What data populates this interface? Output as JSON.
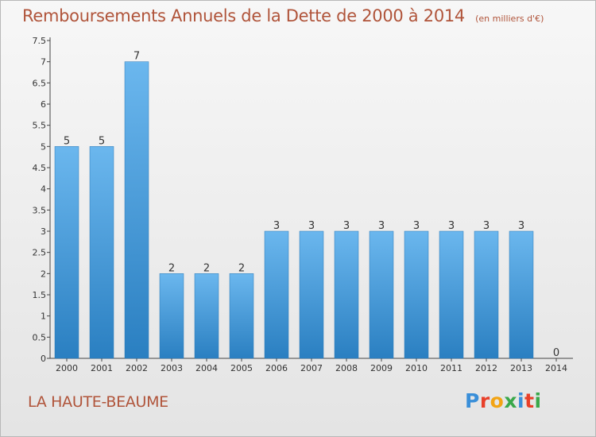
{
  "header": {
    "title": "Remboursements Annuels de la Dette de 2000 à 2014",
    "subtitle": "(en milliers d'€)"
  },
  "footer": {
    "commune": "LA HAUTE-BEAUME",
    "logo_letters": [
      "P",
      "r",
      "o",
      "x",
      "i",
      "t",
      "i"
    ],
    "logo_colors": [
      "#3a8fd9",
      "#e8402a",
      "#f2a414",
      "#3aa84a",
      "#3a8fd9",
      "#e8402a",
      "#3aa84a"
    ]
  },
  "chart_data": {
    "type": "bar",
    "categories": [
      "2000",
      "2001",
      "2002",
      "2003",
      "2004",
      "2005",
      "2006",
      "2007",
      "2008",
      "2009",
      "2010",
      "2011",
      "2012",
      "2013",
      "2014"
    ],
    "values": [
      5,
      5,
      7,
      2,
      2,
      2,
      3,
      3,
      3,
      3,
      3,
      3,
      3,
      3,
      0
    ],
    "data_labels": [
      "5",
      "5",
      "7",
      "2",
      "2",
      "2",
      "3",
      "3",
      "3",
      "3",
      "3",
      "3",
      "3",
      "3",
      "0"
    ],
    "y_ticks": [
      0,
      0.5,
      1,
      1.5,
      2,
      2.5,
      3,
      3.5,
      4,
      4.5,
      5,
      5.5,
      6,
      6.5,
      7,
      7.5
    ],
    "y_tick_labels": [
      "0",
      "0.5",
      "1",
      "1.5",
      "2",
      "2.5",
      "3",
      "3.5",
      "4",
      "4.5",
      "5",
      "5.5",
      "6",
      "6.5",
      "7",
      "7.5"
    ],
    "ylim": [
      0,
      7.5
    ],
    "grid": false,
    "xlabel": "",
    "ylabel": "",
    "colors": {
      "bar_light": "#6bb7ee",
      "bar_dark": "#2a7fc1",
      "axis": "#444444",
      "text": "#333333"
    }
  }
}
